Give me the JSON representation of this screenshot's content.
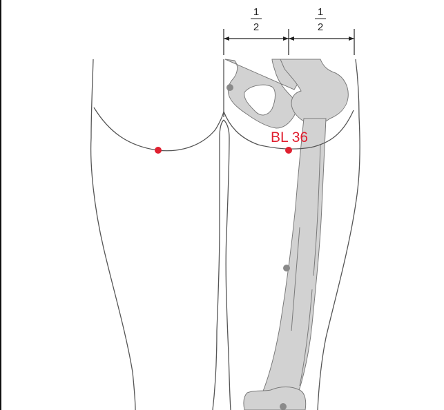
{
  "measure": {
    "left_fraction": {
      "numerator": "1",
      "denominator": "2"
    },
    "right_fraction": {
      "numerator": "1",
      "denominator": "2"
    }
  },
  "acupoint": {
    "label": "BL 36",
    "color": "#e02030"
  },
  "colors": {
    "outline": "#555555",
    "bone_fill": "#d2d2d2",
    "bone_stroke": "#7a7a7a",
    "landmark": "#8a8a8a"
  }
}
